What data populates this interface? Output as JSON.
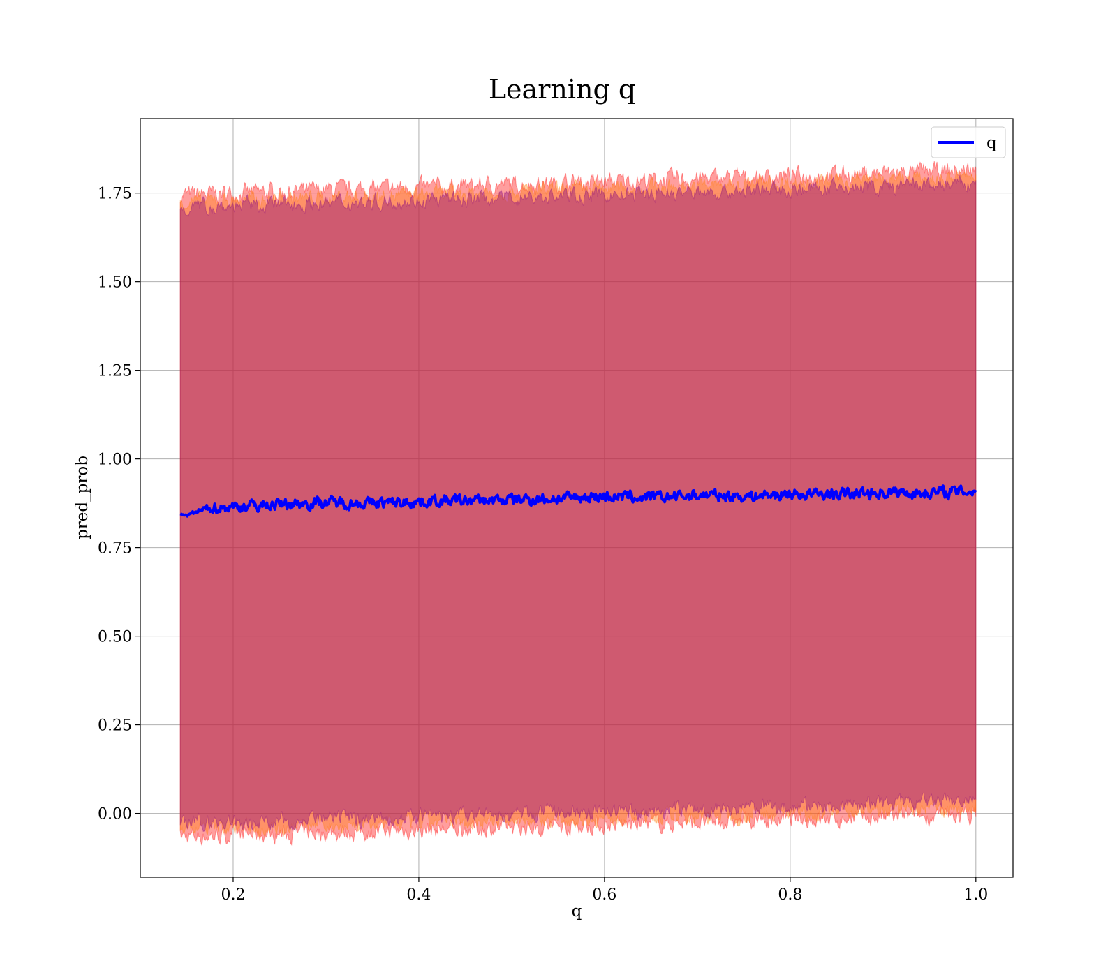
{
  "chart_data": {
    "type": "line",
    "title": "Learning q",
    "xlabel": "q",
    "ylabel": "pred_prob",
    "xlim": [
      0.1,
      1.04
    ],
    "ylim": [
      -0.18,
      1.96
    ],
    "x_ticks": [
      0.2,
      0.4,
      0.6,
      0.8,
      1.0
    ],
    "x_tick_labels": [
      "0.2",
      "0.4",
      "0.6",
      "0.8",
      "1.0"
    ],
    "y_ticks": [
      0.0,
      0.25,
      0.5,
      0.75,
      1.0,
      1.25,
      1.5,
      1.75
    ],
    "y_tick_labels": [
      "0.00",
      "0.25",
      "0.50",
      "0.75",
      "1.00",
      "1.25",
      "1.50",
      "1.75"
    ],
    "grid": true,
    "legend": {
      "placement": "top-right",
      "entries": [
        "q"
      ]
    },
    "series": [
      {
        "name": "q",
        "color": "#0000ff",
        "x": [
          0.143,
          0.15,
          0.175,
          0.2,
          0.25,
          0.3,
          0.35,
          0.4,
          0.45,
          0.5,
          0.55,
          0.6,
          0.65,
          0.7,
          0.75,
          0.8,
          0.85,
          0.9,
          0.95,
          1.0
        ],
        "y": [
          0.845,
          0.84,
          0.862,
          0.865,
          0.872,
          0.878,
          0.875,
          0.88,
          0.882,
          0.885,
          0.888,
          0.895,
          0.89,
          0.898,
          0.895,
          0.9,
          0.9,
          0.905,
          0.905,
          0.91
        ],
        "noise": 0.012
      }
    ],
    "bands": [
      {
        "color": "#ff0000",
        "opacity": 0.38,
        "x": [
          0.143,
          1.0
        ],
        "upper": [
          1.745,
          1.815
        ],
        "lower": [
          -0.065,
          -0.005
        ],
        "noise": 0.018
      },
      {
        "color": "#ff7f0e",
        "opacity": 0.38,
        "x": [
          0.143,
          1.0
        ],
        "upper": [
          1.725,
          1.795
        ],
        "lower": [
          -0.045,
          0.015
        ],
        "noise": 0.016
      },
      {
        "color": "#800080",
        "opacity": 0.38,
        "x": [
          0.143,
          1.0
        ],
        "upper": [
          1.71,
          1.775
        ],
        "lower": [
          -0.03,
          0.035
        ],
        "noise": 0.016
      }
    ]
  }
}
